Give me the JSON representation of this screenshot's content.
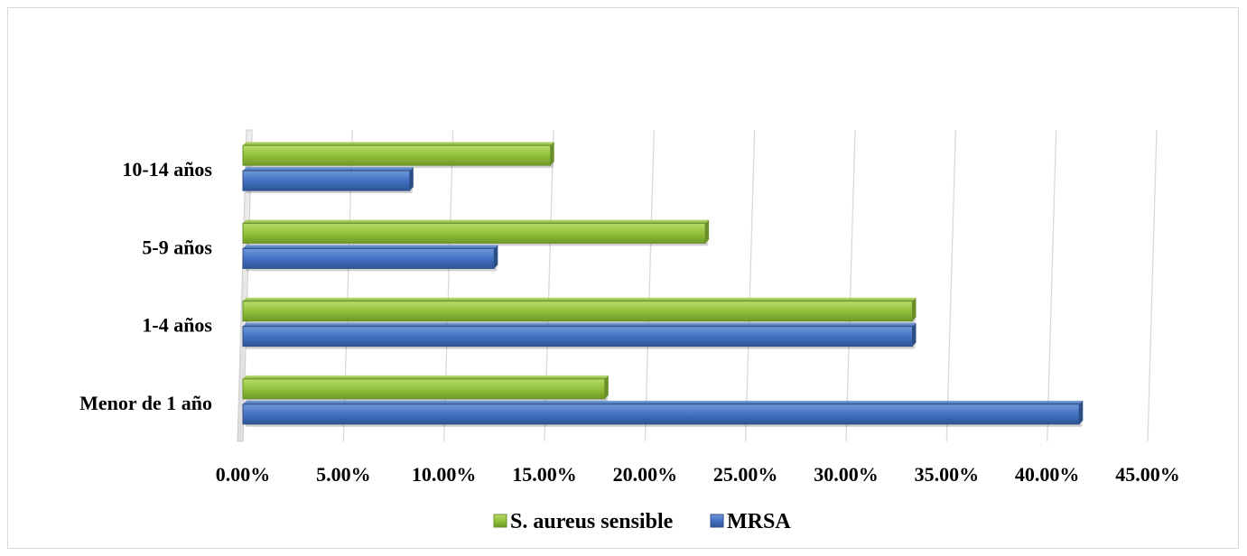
{
  "chart_data": {
    "type": "bar",
    "orientation": "horizontal",
    "categories": [
      "Menor de 1 año",
      "1-4 años",
      "5-9 años",
      "10-14 años"
    ],
    "series": [
      {
        "name": "S. aureus sensible",
        "color": "#92c13c",
        "values": [
          0.18,
          0.333,
          0.23,
          0.153
        ]
      },
      {
        "name": "MRSA",
        "color": "#4472c4",
        "values": [
          0.416,
          0.333,
          0.125,
          0.083
        ]
      }
    ],
    "xlim": [
      0,
      0.45
    ],
    "xticks": [
      0,
      0.05,
      0.1,
      0.15,
      0.2,
      0.25,
      0.3,
      0.35,
      0.4,
      0.45
    ],
    "xtick_labels": [
      "0.00%",
      "5.00%",
      "10.00%",
      "15.00%",
      "20.00%",
      "25.00%",
      "30.00%",
      "35.00%",
      "40.00%",
      "45.00%"
    ],
    "grid": true,
    "legend_position": "bottom",
    "legend": [
      "S. aureus sensible",
      "MRSA"
    ]
  }
}
